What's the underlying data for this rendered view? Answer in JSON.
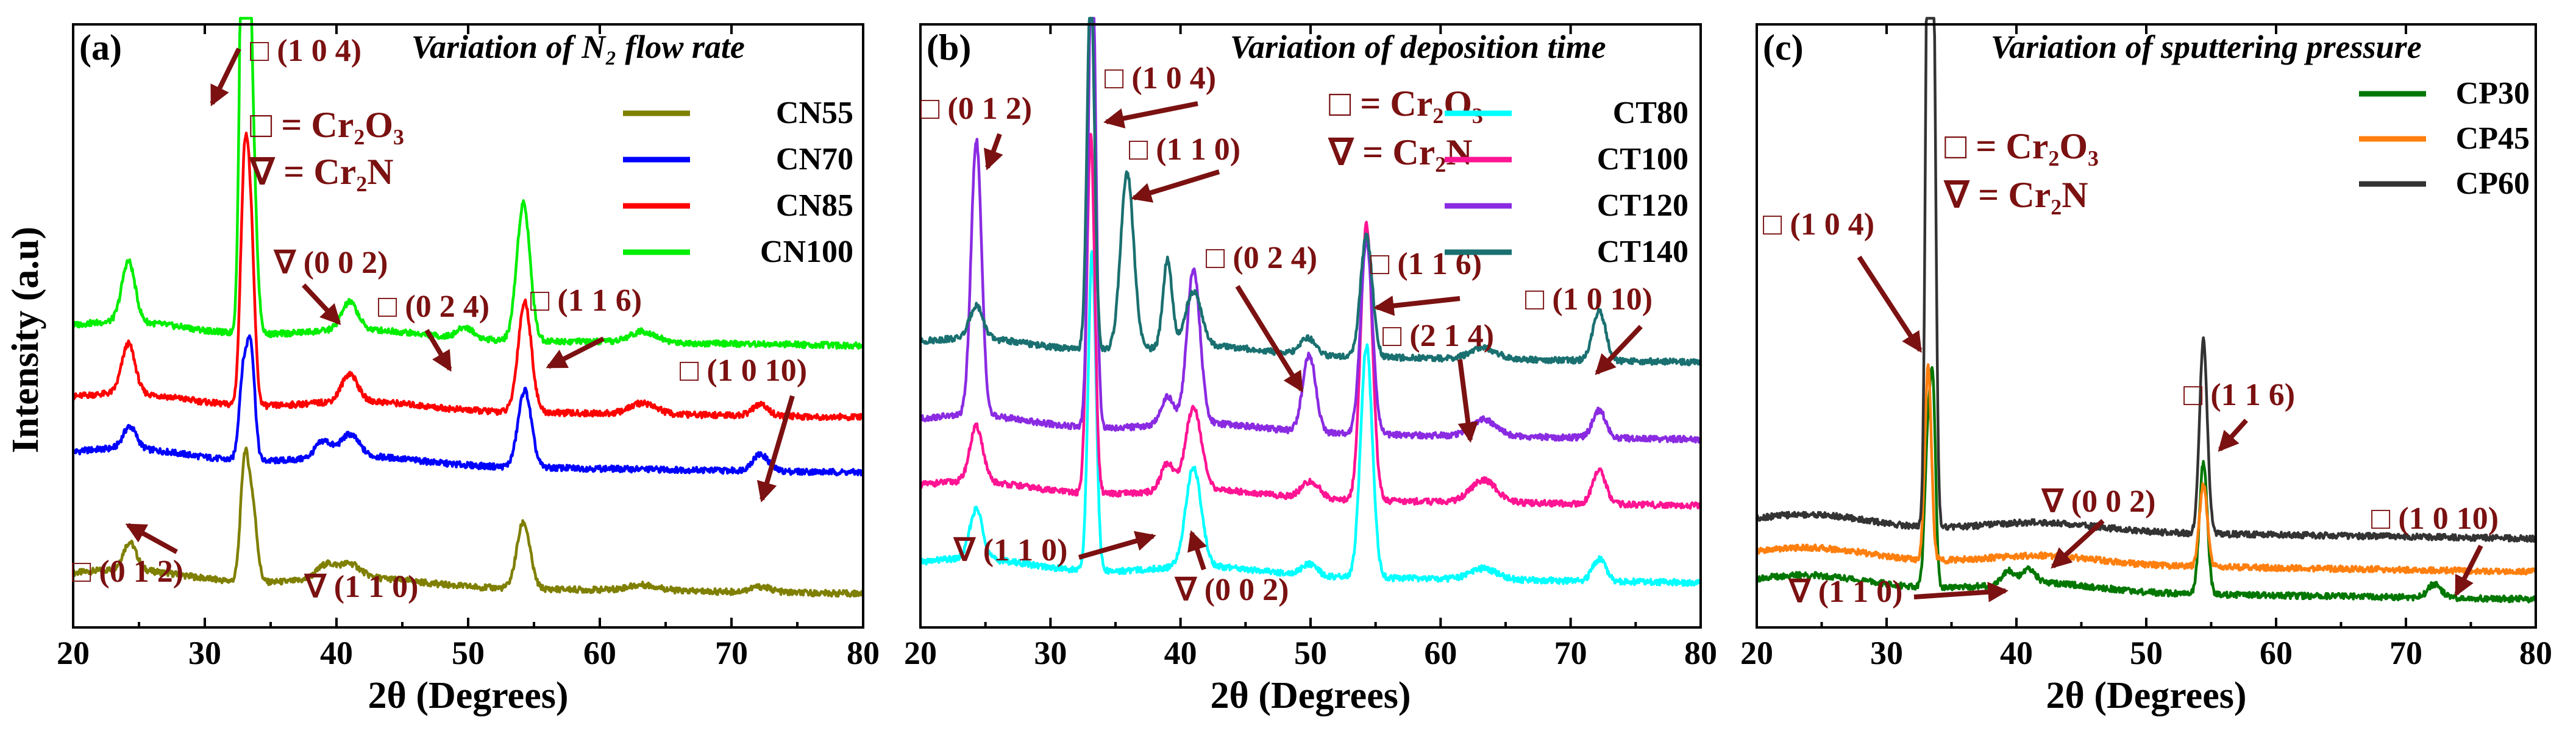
{
  "figure_ylabel": "Intensity (a.u)",
  "chart_data": [
    {
      "panel": "(a)",
      "type": "line",
      "title": "Variation of N₂ flow rate",
      "xlabel": "2θ (Degrees)",
      "xlim": [
        20,
        80
      ],
      "xticks": [
        20,
        30,
        40,
        50,
        60,
        70,
        80
      ],
      "ylim": [
        0,
        100
      ],
      "key": [
        "□ = Cr₂O₃",
        "∇ = Cr₂N"
      ],
      "series": [
        {
          "name": "CN55",
          "color": "#7f7f00",
          "baseline": 6,
          "peaks": [
            [
              24.3,
              5,
              0.5
            ],
            [
              33.0,
              20,
              0.3
            ],
            [
              33.6,
              14,
              0.35
            ],
            [
              39.2,
              2.5,
              0.7
            ],
            [
              41.0,
              2.5,
              0.8
            ],
            [
              54.2,
              12,
              0.5
            ],
            [
              63.3,
              1.0,
              1.2
            ],
            [
              72.2,
              1.0,
              0.8
            ]
          ]
        },
        {
          "name": "CN70",
          "color": "#0000ff",
          "baseline": 28,
          "peaks": [
            [
              24.3,
              4,
              0.5
            ],
            [
              32.9,
              15,
              0.3
            ],
            [
              33.5,
              20,
              0.3
            ],
            [
              39.0,
              3,
              0.6
            ],
            [
              41.0,
              4,
              0.7
            ],
            [
              54.3,
              14,
              0.5
            ],
            [
              72.2,
              3,
              0.6
            ]
          ]
        },
        {
          "name": "CN85",
          "color": "#ff0000",
          "baseline": 38,
          "peaks": [
            [
              24.2,
              9,
              0.5
            ],
            [
              33.0,
              40,
              0.3
            ],
            [
              33.5,
              28,
              0.3
            ],
            [
              41.0,
              5,
              0.6
            ],
            [
              54.3,
              20,
              0.5
            ],
            [
              63.3,
              2,
              1.0
            ],
            [
              72.2,
              2,
              0.6
            ]
          ]
        },
        {
          "name": "CN100",
          "color": "#00ee00",
          "baseline": 51,
          "peaks": [
            [
              24.2,
              11,
              0.5
            ],
            [
              33.0,
              112,
              0.28
            ],
            [
              33.5,
              42,
              0.35
            ],
            [
              41.0,
              5,
              0.6
            ],
            [
              49.8,
              2,
              0.6
            ],
            [
              54.2,
              25,
              0.5
            ],
            [
              63.3,
              2,
              1.0
            ]
          ]
        }
      ],
      "annotations": [
        {
          "text": "□ (1 0 4)",
          "x": 33.2
        },
        {
          "text": "∇ (0 0 2)",
          "x": 41.0
        },
        {
          "text": "□ (0 2 4)",
          "x": 49.8
        },
        {
          "text": "□ (1 1 6)",
          "x": 54.3
        },
        {
          "text": "□ (1 0 10)",
          "x": 72.2
        },
        {
          "text": "□ (0 1 2)",
          "x": 24.3
        },
        {
          "text": "∇ (1 1 0)",
          "x": 39.2
        }
      ]
    },
    {
      "panel": "(b)",
      "type": "line",
      "title": "Variation of deposition time",
      "xlabel": "2θ (Degrees)",
      "xlim": [
        20,
        80
      ],
      "xticks": [
        20,
        30,
        40,
        50,
        60,
        70,
        80
      ],
      "ylim": [
        0,
        100
      ],
      "key": [
        "□ = Cr₂O₃",
        "∇ = Cr₂N"
      ],
      "series": [
        {
          "name": "CT80",
          "color": "#00ffff",
          "baseline": 8,
          "peaks": [
            [
              24.3,
              9,
              0.5
            ],
            [
              33.2,
              58,
              0.3
            ],
            [
              41.0,
              18,
              0.6
            ],
            [
              49.9,
              2,
              0.6
            ],
            [
              54.3,
              42,
              0.45
            ],
            [
              63.3,
              2,
              1.0
            ],
            [
              72.2,
              4,
              0.5
            ]
          ]
        },
        {
          "name": "CT100",
          "color": "#ff1493",
          "baseline": 22,
          "peaks": [
            [
              24.3,
              10,
              0.5
            ],
            [
              33.1,
              65,
              0.3
            ],
            [
              39.0,
              5,
              0.5
            ],
            [
              41.0,
              15,
              0.6
            ],
            [
              50.0,
              3,
              0.7
            ],
            [
              54.3,
              50,
              0.45
            ],
            [
              63.3,
              4,
              1.0
            ],
            [
              72.2,
              6,
              0.5
            ]
          ]
        },
        {
          "name": "CT120",
          "color": "#8a2be2",
          "baseline": 34,
          "peaks": [
            [
              24.3,
              50,
              0.4
            ],
            [
              33.2,
              90,
              0.28
            ],
            [
              39.0,
              5,
              0.5
            ],
            [
              41.0,
              28,
              0.5
            ],
            [
              49.9,
              14,
              0.5
            ],
            [
              54.3,
              35,
              0.45
            ],
            [
              63.3,
              3,
              1.0
            ],
            [
              72.2,
              5,
              0.5
            ]
          ]
        },
        {
          "name": "CT140",
          "color": "#1a7070",
          "baseline": 48,
          "peaks": [
            [
              24.3,
              6,
              0.5
            ],
            [
              33.1,
              68,
              0.28
            ],
            [
              35.9,
              32,
              0.5
            ],
            [
              39.0,
              16,
              0.35
            ],
            [
              41.0,
              10,
              0.6
            ],
            [
              49.8,
              3,
              0.6
            ],
            [
              54.3,
              22,
              0.45
            ],
            [
              63.3,
              2,
              1.0
            ],
            [
              72.2,
              9,
              0.5
            ]
          ]
        }
      ],
      "annotations": [
        {
          "text": "□ (0 1 2)",
          "x": 24.3
        },
        {
          "text": "□ (1 0 4)",
          "x": 33.2
        },
        {
          "text": "□ (1 1 0)",
          "x": 35.9
        },
        {
          "text": "□ (0 2 4)",
          "x": 49.9
        },
        {
          "text": "□ (1 1 6)",
          "x": 54.3
        },
        {
          "text": "□ (2 1 4)",
          "x": 63.3
        },
        {
          "text": "□ (1 0 10)",
          "x": 72.2
        },
        {
          "text": "∇ (1 1 0)",
          "x": 39.0
        },
        {
          "text": "∇ (0 0 2)",
          "x": 41.0
        }
      ]
    },
    {
      "panel": "(c)",
      "type": "line",
      "title": "Variation of sputtering pressure",
      "xlabel": "2θ (Degrees)",
      "xlim": [
        20,
        80
      ],
      "xticks": [
        20,
        30,
        40,
        50,
        60,
        70,
        80
      ],
      "ylim": [
        0,
        100
      ],
      "key": [
        "□ = Cr₂O₃",
        "∇ = Cr₂N"
      ],
      "series": [
        {
          "name": "CP30",
          "color": "#007700",
          "baseline": 5,
          "peaks": [
            [
              33.2,
              28,
              0.25
            ],
            [
              33.6,
              30,
              0.2
            ],
            [
              39.4,
              2.5,
              0.5
            ],
            [
              41.0,
              2.5,
              0.5
            ],
            [
              54.4,
              24,
              0.3
            ],
            [
              72.2,
              2.5,
              0.5
            ]
          ]
        },
        {
          "name": "CP45",
          "color": "#ff7f0e",
          "baseline": 10,
          "peaks": [
            [
              33.2,
              35,
              0.25
            ],
            [
              54.4,
              15,
              0.3
            ]
          ]
        },
        {
          "name": "CP60",
          "color": "#333333",
          "baseline": 16,
          "peaks": [
            [
              33.2,
              118,
              0.2
            ],
            [
              33.6,
              95,
              0.2
            ],
            [
              54.4,
              35,
              0.3
            ]
          ]
        }
      ],
      "annotations": [
        {
          "text": "□ (1 0 4)",
          "x": 33.2
        },
        {
          "text": "□ (1 1 6)",
          "x": 54.4
        },
        {
          "text": "∇ (0 0 2)",
          "x": 41.0
        },
        {
          "text": "∇ (1 1 0)",
          "x": 39.4
        },
        {
          "text": "□ (1 0 10)",
          "x": 72.2
        }
      ]
    }
  ]
}
